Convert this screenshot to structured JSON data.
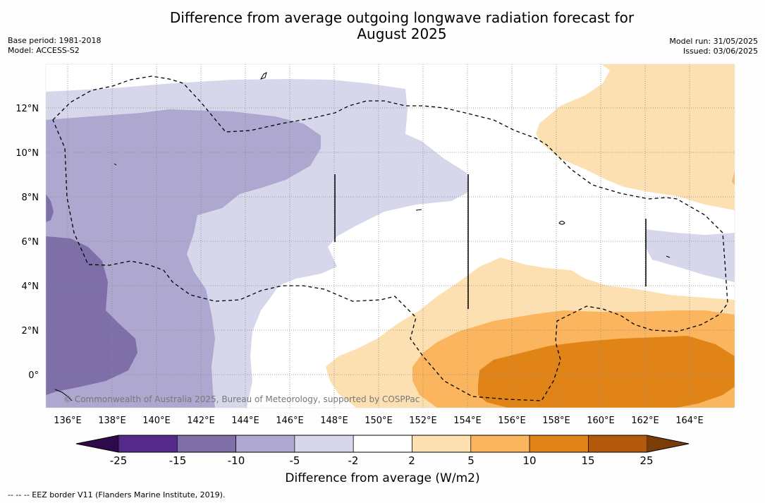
{
  "title_line1": "Difference from average outgoing longwave radiation forecast for",
  "title_line2": "August 2025",
  "base_period": "Base period: 1981-2018",
  "model": "Model: ACCESS-S2",
  "model_run": "Model run: 31/05/2025",
  "issued": "Issued: 03/06/2025",
  "copyright": "© Commonwealth of Australia 2025, Bureau of Meteorology, supported by COSPPac",
  "lon_labels": [
    "136°E",
    "138°E",
    "140°E",
    "142°E",
    "144°E",
    "146°E",
    "148°E",
    "150°E",
    "152°E",
    "154°E",
    "156°E",
    "158°E",
    "160°E",
    "162°E",
    "164°E"
  ],
  "lat_labels": [
    "12°N",
    "10°N",
    "8°N",
    "6°N",
    "4°N",
    "2°N",
    "0°"
  ],
  "colorbar": {
    "ticks": [
      "-25",
      "-15",
      "-10",
      "-5",
      "-2",
      "2",
      "5",
      "10",
      "15",
      "25"
    ],
    "colors": [
      "#2e0a4a",
      "#562a8a",
      "#7e6fa9",
      "#aea7d0",
      "#d6d7ea",
      "#ffffff",
      "#fde0b2",
      "#fbb55e",
      "#e08418",
      "#b35a0c",
      "#7a3d08"
    ],
    "title": "Difference from average (W/m2)"
  },
  "footnote": "--  --  -- EEZ border V11 (Flanders Marine Institute, 2019)."
}
